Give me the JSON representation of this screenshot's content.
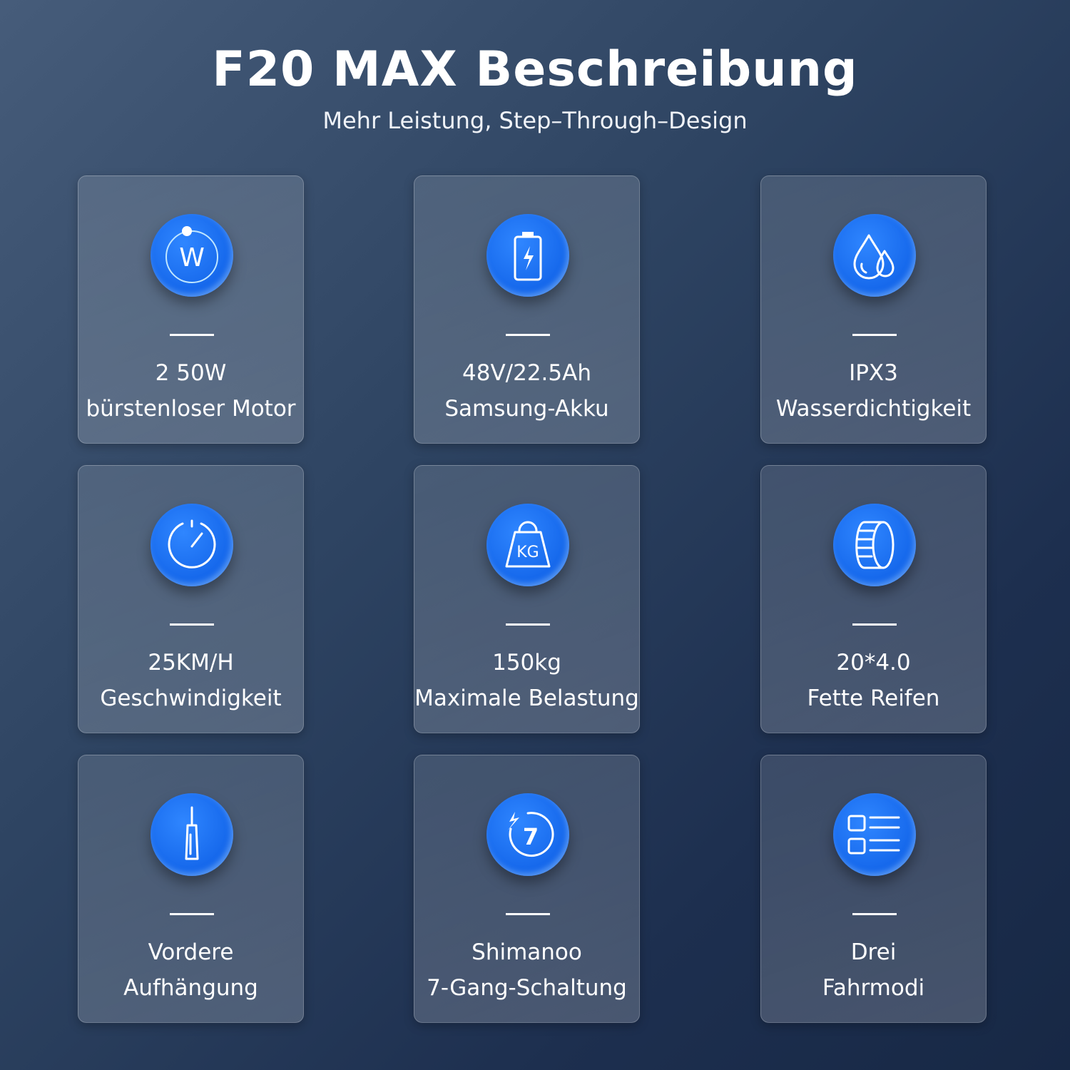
{
  "title": "F20 MAX Beschreibung",
  "subtitle": "Mehr Leistung, Step–Through–Design",
  "accent_color": "#1a6ff0",
  "features": [
    {
      "icon": "power-watt-icon",
      "line1": "2 50W",
      "line2": "bürstenloser Motor"
    },
    {
      "icon": "battery-icon",
      "line1": "48V/22.5Ah",
      "line2": "Samsung-Akku"
    },
    {
      "icon": "water-drops-icon",
      "line1": "IPX3",
      "line2": "Wasserdichtigkeit"
    },
    {
      "icon": "speedometer-icon",
      "line1": "25KM/H",
      "line2": "Geschwindigkeit"
    },
    {
      "icon": "weight-kg-icon",
      "line1": "150kg",
      "line2": "Maximale Belastung"
    },
    {
      "icon": "tire-icon",
      "line1": "20*4.0",
      "line2": "Fette Reifen"
    },
    {
      "icon": "suspension-fork-icon",
      "line1": "Vordere",
      "line2": "Aufhängung"
    },
    {
      "icon": "gear-7-icon",
      "line1": "Shimanoo",
      "line2": "7-Gang-Schaltung"
    },
    {
      "icon": "modes-list-icon",
      "line1": "Drei",
      "line2": "Fahrmodi"
    }
  ]
}
